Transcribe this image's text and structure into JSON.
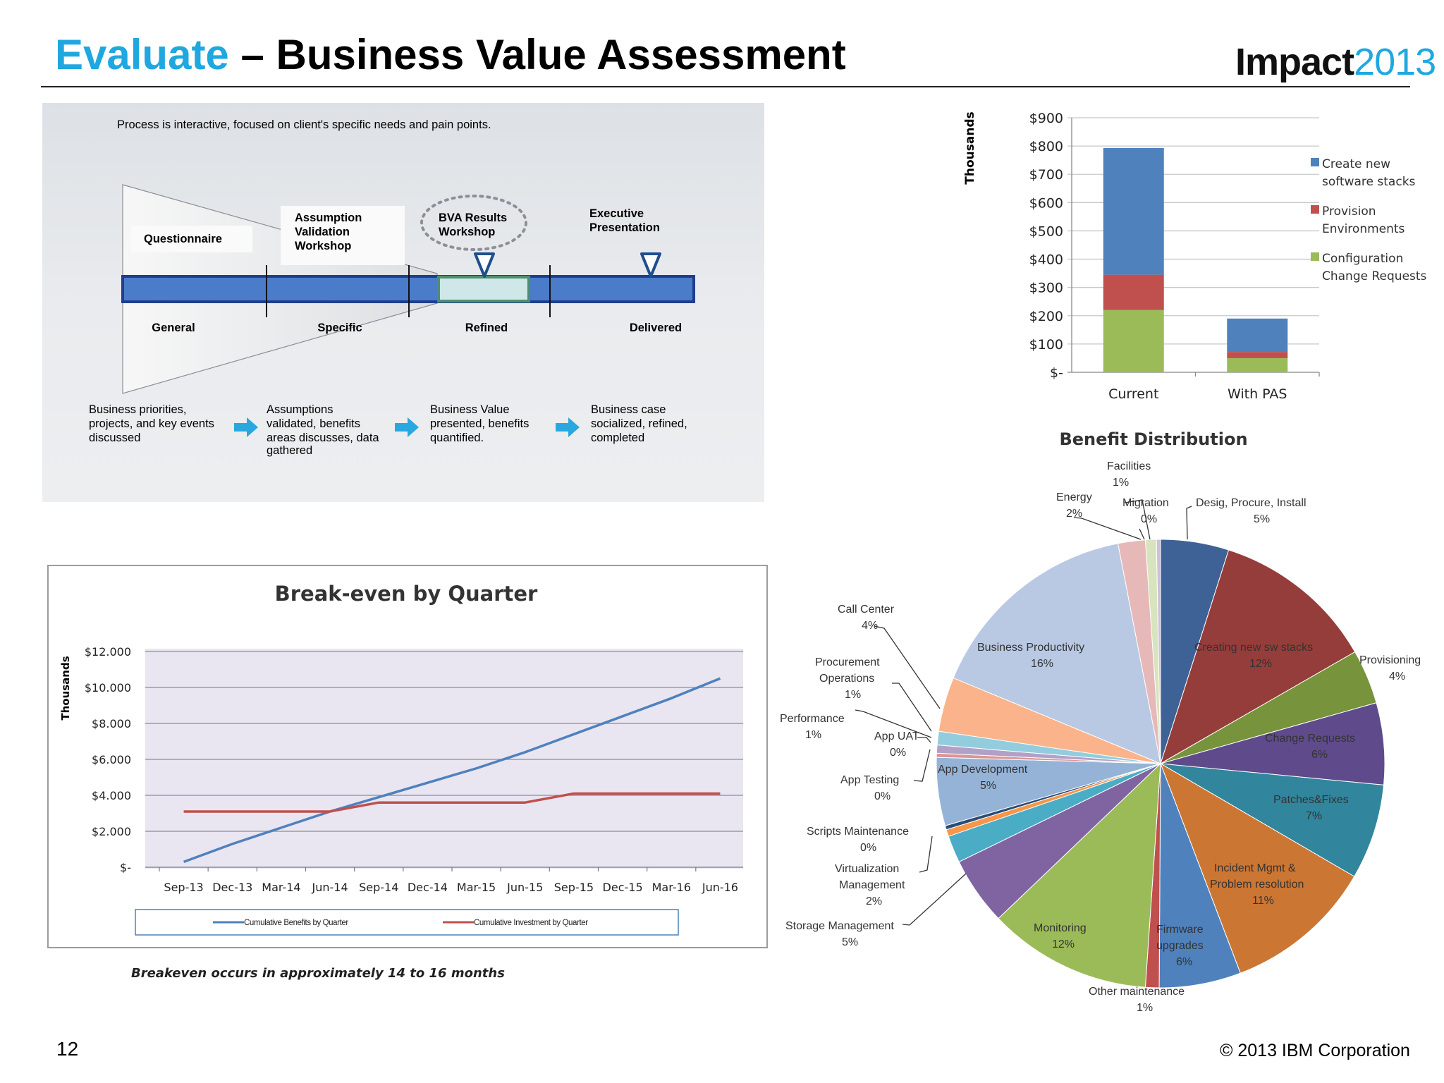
{
  "header": {
    "title_highlight": "Evaluate",
    "title_rest": " – Business Value Assessment",
    "logo_word": "Impact",
    "logo_year": "2013"
  },
  "footer": {
    "page_number": "12",
    "copyright": "© 2013 IBM Corporation"
  },
  "colors": {
    "accent": "#1fa8e0",
    "bar_blue": "#4f81bd",
    "bar_red": "#c0504d",
    "bar_green": "#9bbb59",
    "process_bar": "#4a7cc9",
    "arrow": "#29a8e0"
  },
  "process": {
    "intro": "Process is interactive, focused on client's specific needs and pain points.",
    "stage_boxes": [
      "Questionnaire",
      "Assumption Validation Workshop",
      "BVA Results Workshop",
      "Executive Presentation"
    ],
    "phases": [
      "General",
      "Specific",
      "Refined",
      "Delivered"
    ],
    "descriptions": [
      "Business priorities, projects, and key events discussed",
      "Assumptions validated, benefits areas discusses, data gathered",
      "Business Value presented, benefits quantified.",
      "Business case socialized, refined, completed"
    ]
  },
  "chart_data": [
    {
      "type": "bar",
      "stacked": true,
      "title": "",
      "ylabel": "Thousands",
      "categories": [
        "Current",
        "With PAS"
      ],
      "series": [
        {
          "name": "Configuration Change Requests",
          "values": [
            220,
            50
          ],
          "color": "#9bbb59"
        },
        {
          "name": "Provision Environments",
          "values": [
            125,
            22
          ],
          "color": "#c0504d"
        },
        {
          "name": "Create new software stacks",
          "values": [
            448,
            118
          ],
          "color": "#4f81bd"
        }
      ],
      "ylim": [
        0,
        900
      ],
      "yticks": [
        "$-",
        "$100",
        "$200",
        "$300",
        "$400",
        "$500",
        "$600",
        "$700",
        "$800",
        "$900"
      ],
      "legend": "right",
      "grid": true
    },
    {
      "type": "line",
      "title": "Break-even by Quarter",
      "ylabel": "Thousands",
      "x": [
        "Sep-13",
        "Dec-13",
        "Mar-14",
        "Jun-14",
        "Sep-14",
        "Dec-14",
        "Mar-15",
        "Jun-15",
        "Sep-15",
        "Dec-15",
        "Mar-16",
        "Jun-16"
      ],
      "series": [
        {
          "name": "Cumulative Benefits by Quarter",
          "values": [
            300,
            1300,
            2200,
            3100,
            3900,
            4700,
            5500,
            6400,
            7400,
            8400,
            9400,
            10500
          ],
          "color": "#4f81bd"
        },
        {
          "name": "Cumulative Investment by Quarter",
          "values": [
            3100,
            3100,
            3100,
            3100,
            3600,
            3600,
            3600,
            3600,
            4100,
            4100,
            4100,
            4100
          ],
          "color": "#c0504d"
        }
      ],
      "ylim": [
        0,
        12000
      ],
      "yticks": [
        "$-",
        "$2.000",
        "$4.000",
        "$6.000",
        "$8.000",
        "$10.000",
        "$12.000"
      ],
      "legend": "bottom",
      "grid": true,
      "caption": "Breakeven occurs in approximately 14 to 16 months"
    },
    {
      "type": "pie",
      "title": "Benefit Distribution",
      "slices": [
        {
          "name": "Desig, Procure, Install",
          "value": 5,
          "label": "5%",
          "color": "#3e6196"
        },
        {
          "name": "Creating new sw stacks",
          "value": 12,
          "label": "12%",
          "color": "#953d3a"
        },
        {
          "name": "Provisioning",
          "value": 4,
          "label": "4%",
          "color": "#77933c"
        },
        {
          "name": "Change Requests",
          "value": 6,
          "label": "6%",
          "color": "#5f4b8b"
        },
        {
          "name": "Patches&Fixes",
          "value": 7,
          "label": "7%",
          "color": "#31859c"
        },
        {
          "name": "Incident Mgmt & Problem resolution",
          "value": 11,
          "label": "11%",
          "color": "#cc7633"
        },
        {
          "name": "Firmware upgrades",
          "value": 6,
          "label": "6%",
          "color": "#4f81bd"
        },
        {
          "name": "Other maintenance",
          "value": 1,
          "label": "1%",
          "color": "#c0504d"
        },
        {
          "name": "Monitoring",
          "value": 12,
          "label": "12%",
          "color": "#9bbb59"
        },
        {
          "name": "Storage Management",
          "value": 5,
          "label": "5%",
          "color": "#8064a2"
        },
        {
          "name": "Virtualization Management",
          "value": 2,
          "label": "2%",
          "color": "#4bacc6"
        },
        {
          "name": "Scripts Maintenance",
          "value": 0.5,
          "label": "0%",
          "color": "#f79646"
        },
        {
          "name": "App Testing",
          "value": 0.3,
          "label": "0%",
          "color": "#2c4d75"
        },
        {
          "name": "App Development",
          "value": 5,
          "label": "5%",
          "color": "#95b3d7"
        },
        {
          "name": "App UAT",
          "value": 0.3,
          "label": "0%",
          "color": "#d99694"
        },
        {
          "name": "Performance",
          "value": 0.6,
          "label": "1%",
          "color": "#b2a1c7"
        },
        {
          "name": "Procurement Operations",
          "value": 1,
          "label": "1%",
          "color": "#93cddd"
        },
        {
          "name": "Call Center",
          "value": 4,
          "label": "4%",
          "color": "#fab38a"
        },
        {
          "name": "Business Productivity",
          "value": 16,
          "label": "16%",
          "color": "#b9c9e3"
        },
        {
          "name": "Energy",
          "value": 2,
          "label": "2%",
          "color": "#e6b9b8"
        },
        {
          "name": "Facilities",
          "value": 0.8,
          "label": "1%",
          "color": "#d7e4bd"
        },
        {
          "name": "Migration",
          "value": 0.3,
          "label": "0%",
          "color": "#ccc1da"
        }
      ]
    }
  ]
}
